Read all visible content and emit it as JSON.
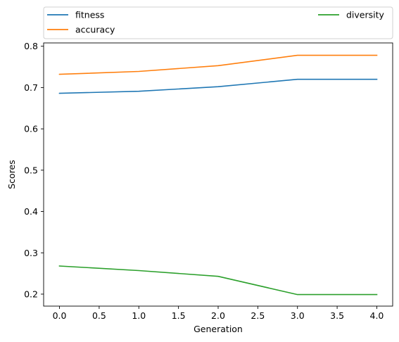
{
  "chart_data": {
    "type": "line",
    "title": "",
    "xlabel": "Generation",
    "ylabel": "Scores",
    "x": [
      0,
      1,
      2,
      3,
      4
    ],
    "xlim": [
      -0.2,
      4.2
    ],
    "ylim": [
      0.171,
      0.808
    ],
    "xticks": [
      0.0,
      0.5,
      1.0,
      1.5,
      2.0,
      2.5,
      3.0,
      3.5,
      4.0
    ],
    "yticks": [
      0.2,
      0.3,
      0.4,
      0.5,
      0.6,
      0.7,
      0.8
    ],
    "grid": false,
    "legend_position": "top, above plot",
    "series": [
      {
        "name": "fitness",
        "color": "#1f77b4",
        "values": [
          0.686,
          0.691,
          0.702,
          0.72,
          0.72
        ]
      },
      {
        "name": "accuracy",
        "color": "#ff7f0e",
        "values": [
          0.732,
          0.739,
          0.753,
          0.778,
          0.778
        ]
      },
      {
        "name": "diversity",
        "color": "#2ca02c",
        "values": [
          0.268,
          0.257,
          0.243,
          0.199,
          0.199
        ]
      }
    ]
  }
}
